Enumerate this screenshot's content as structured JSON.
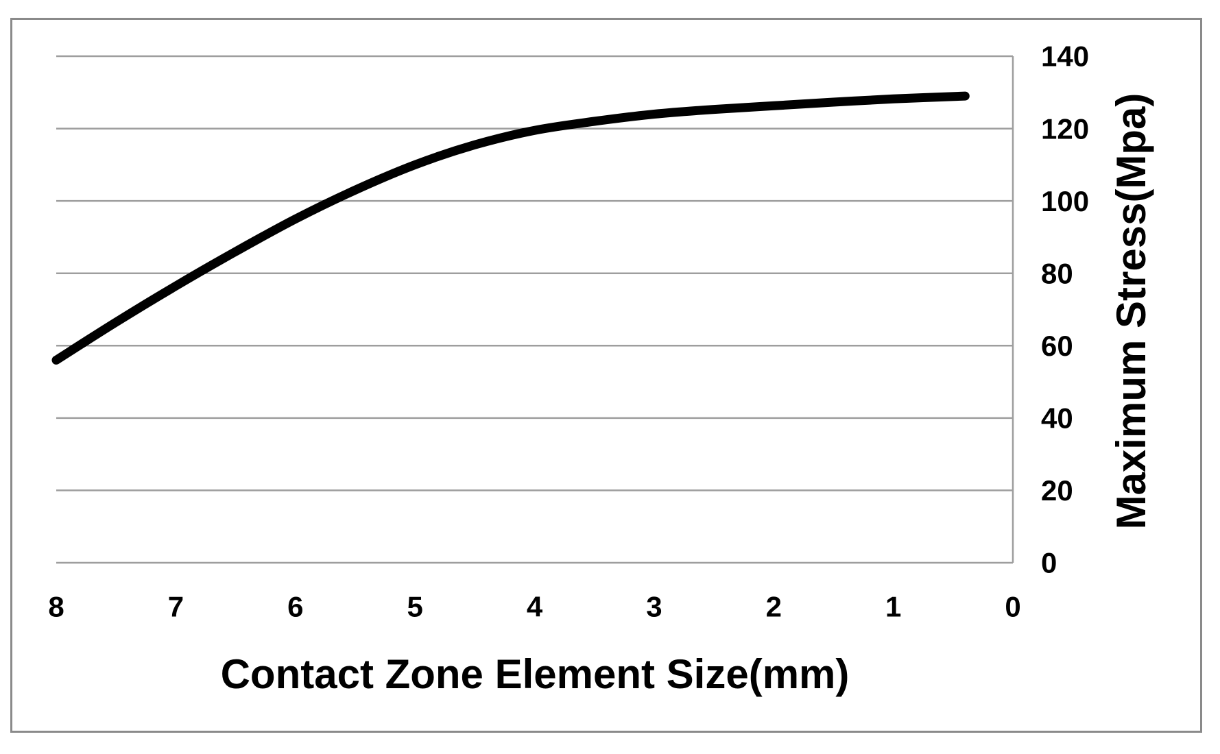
{
  "chart_data": {
    "type": "line",
    "title": "",
    "xlabel": "Contact Zone Element Size(mm)",
    "ylabel": "Maximum Stress(Mpa)",
    "x_ticks": [
      8,
      7,
      6,
      5,
      4,
      3,
      2,
      1,
      0
    ],
    "y_ticks": [
      140,
      120,
      100,
      80,
      60,
      40,
      20,
      0
    ],
    "x_axis": {
      "min": 0,
      "max": 8,
      "reversed": true,
      "labels_side": "bottom"
    },
    "y_axis": {
      "min": 0,
      "max": 140,
      "side": "right"
    },
    "grid": {
      "horizontal": true,
      "vertical": false
    },
    "legend": "none",
    "series": [
      {
        "name": "Maximum Stress",
        "color": "#000000",
        "points": [
          [
            8.0,
            56.0
          ],
          [
            7.5,
            66.5
          ],
          [
            7.0,
            76.5
          ],
          [
            6.5,
            86.0
          ],
          [
            6.0,
            95.0
          ],
          [
            5.5,
            103.0
          ],
          [
            5.0,
            110.0
          ],
          [
            4.5,
            115.5
          ],
          [
            4.0,
            119.5
          ],
          [
            3.5,
            122.0
          ],
          [
            3.0,
            124.0
          ],
          [
            2.5,
            125.3
          ],
          [
            2.0,
            126.3
          ],
          [
            1.5,
            127.3
          ],
          [
            1.0,
            128.2
          ],
          [
            0.4,
            129.0
          ]
        ]
      }
    ],
    "colors": {
      "gridline": "#9e9e9e",
      "axis_line": "#9e9e9e",
      "figure_border": "#8a8a8a",
      "text": "#000000",
      "background": "#ffffff"
    }
  }
}
